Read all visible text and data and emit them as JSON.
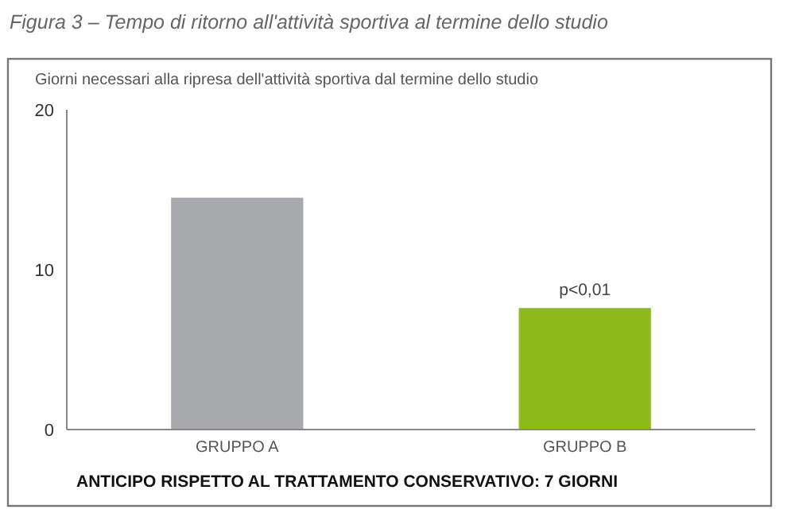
{
  "chart_data": {
    "type": "bar",
    "title": "Figura 3 – Tempo di ritorno all'attività sportiva al termine dello studio",
    "ylabel": "Giorni necessari alla ripresa dell'attività sportiva dal termine dello studio",
    "categories": [
      "GRUPPO A",
      "GRUPPO B"
    ],
    "values": [
      14.5,
      7.6
    ],
    "colors": [
      "#a7a9ac",
      "#8dba1a"
    ],
    "ylim": [
      0,
      20
    ],
    "yticks": [
      0,
      10,
      20
    ],
    "grid": false,
    "annotations": [
      {
        "text": "p<0,01",
        "x": "GRUPPO B",
        "y": 7.6
      },
      "ANTICIPO RISPETTO AL TRATTAMENTO CONSERVATIVO: 7 GIORNI"
    ]
  }
}
